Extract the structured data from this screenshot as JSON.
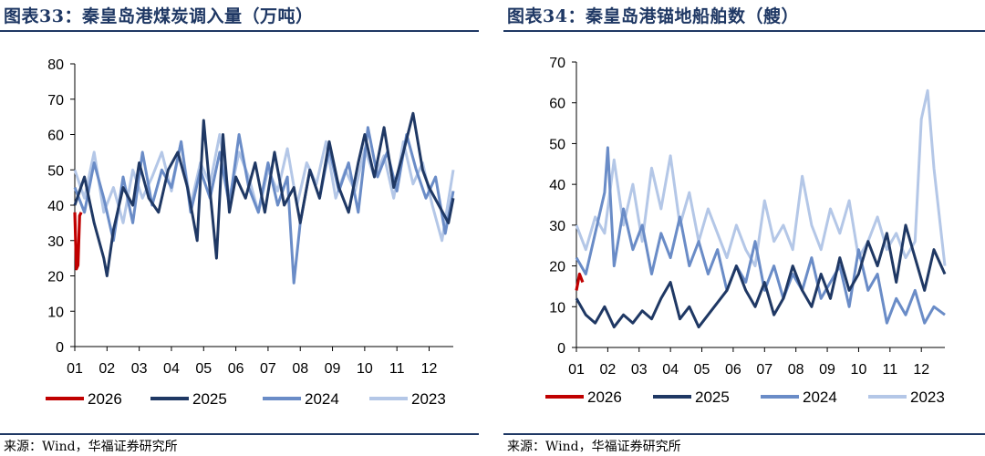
{
  "panels": [
    {
      "title": "图表33：秦皇岛港煤炭调入量（万吨）",
      "source": "来源：Wind，华福证券研究所"
    },
    {
      "title": "图表34：秦皇岛港锚地船舶数（艘）",
      "source": "来源：Wind，华福证券研究所"
    }
  ],
  "colors": {
    "2026": "#c00000",
    "2025": "#1f3864",
    "2024": "#6a8cc7",
    "2023": "#b4c7e7",
    "title": "#1f3864"
  },
  "chart_data": [
    {
      "type": "line",
      "title": "秦皇岛港煤炭调入量（万吨）",
      "x_ticks": [
        "01",
        "02",
        "03",
        "04",
        "05",
        "06",
        "07",
        "08",
        "09",
        "10",
        "11",
        "12"
      ],
      "ylim": [
        0,
        80
      ],
      "y_ticks": [
        0,
        10,
        20,
        30,
        40,
        50,
        60,
        70,
        80
      ],
      "legend": [
        "2026",
        "2025",
        "2024",
        "2023"
      ],
      "series": [
        {
          "name": "2026",
          "x": [
            1.0,
            1.05,
            1.1,
            1.15,
            1.2
          ],
          "values": [
            38,
            22,
            23,
            37,
            38
          ]
        },
        {
          "name": "2025",
          "x": [
            1.0,
            1.3,
            1.6,
            1.9,
            2.0,
            2.2,
            2.5,
            2.8,
            3.0,
            3.3,
            3.6,
            3.9,
            4.2,
            4.5,
            4.8,
            5.0,
            5.2,
            5.4,
            5.6,
            5.8,
            6.0,
            6.3,
            6.6,
            6.9,
            7.2,
            7.5,
            7.8,
            8.0,
            8.3,
            8.6,
            8.9,
            9.2,
            9.5,
            9.8,
            10.0,
            10.3,
            10.6,
            10.9,
            11.2,
            11.5,
            11.8,
            12.0,
            12.3,
            12.6,
            12.75
          ],
          "values": [
            40,
            48,
            35,
            25,
            20,
            33,
            45,
            40,
            52,
            42,
            38,
            50,
            55,
            45,
            30,
            64,
            44,
            25,
            60,
            38,
            48,
            42,
            52,
            38,
            55,
            40,
            45,
            35,
            50,
            42,
            58,
            45,
            38,
            52,
            60,
            48,
            62,
            45,
            55,
            66,
            50,
            45,
            40,
            35,
            42
          ]
        },
        {
          "name": "2024",
          "x": [
            1.0,
            1.3,
            1.6,
            1.9,
            2.2,
            2.5,
            2.8,
            3.1,
            3.4,
            3.7,
            4.0,
            4.3,
            4.6,
            4.9,
            5.2,
            5.5,
            5.8,
            6.1,
            6.4,
            6.7,
            7.0,
            7.3,
            7.6,
            7.8,
            8.0,
            8.3,
            8.6,
            8.9,
            9.2,
            9.5,
            9.8,
            10.1,
            10.4,
            10.7,
            11.0,
            11.3,
            11.6,
            11.9,
            12.2,
            12.5,
            12.75
          ],
          "values": [
            45,
            38,
            52,
            42,
            30,
            48,
            35,
            55,
            40,
            50,
            45,
            58,
            38,
            50,
            42,
            55,
            40,
            60,
            45,
            38,
            52,
            40,
            48,
            18,
            35,
            50,
            42,
            56,
            44,
            52,
            38,
            62,
            48,
            55,
            44,
            60,
            50,
            42,
            48,
            32,
            44
          ]
        },
        {
          "name": "2023",
          "x": [
            1.0,
            1.3,
            1.6,
            1.9,
            2.2,
            2.5,
            2.8,
            3.1,
            3.4,
            3.7,
            4.0,
            4.3,
            4.6,
            4.9,
            5.2,
            5.5,
            5.8,
            6.1,
            6.4,
            6.7,
            7.0,
            7.3,
            7.6,
            7.9,
            8.2,
            8.5,
            8.8,
            9.1,
            9.4,
            9.7,
            10.0,
            10.3,
            10.6,
            10.9,
            11.2,
            11.5,
            11.8,
            12.1,
            12.4,
            12.75
          ],
          "values": [
            50,
            42,
            55,
            38,
            45,
            35,
            50,
            42,
            48,
            55,
            44,
            58,
            40,
            52,
            46,
            60,
            42,
            55,
            48,
            38,
            50,
            44,
            56,
            40,
            52,
            46,
            58,
            42,
            50,
            44,
            56,
            48,
            54,
            42,
            58,
            46,
            52,
            40,
            30,
            50
          ]
        }
      ]
    },
    {
      "type": "line",
      "title": "秦皇岛港锚地船舶数（艘）",
      "x_ticks": [
        "01",
        "02",
        "03",
        "04",
        "05",
        "06",
        "07",
        "08",
        "09",
        "10",
        "11",
        "12"
      ],
      "ylim": [
        0,
        70
      ],
      "y_ticks": [
        0,
        10,
        20,
        30,
        40,
        50,
        60,
        70
      ],
      "legend": [
        "2026",
        "2025",
        "2024",
        "2023"
      ],
      "series": [
        {
          "name": "2026",
          "x": [
            1.0,
            1.1,
            1.2
          ],
          "values": [
            14,
            18,
            16
          ]
        },
        {
          "name": "2025",
          "x": [
            1.0,
            1.3,
            1.6,
            1.9,
            2.2,
            2.5,
            2.8,
            3.1,
            3.4,
            3.7,
            4.0,
            4.3,
            4.6,
            4.9,
            5.2,
            5.5,
            5.8,
            6.1,
            6.4,
            6.7,
            7.0,
            7.3,
            7.6,
            7.9,
            8.2,
            8.5,
            8.8,
            9.1,
            9.4,
            9.7,
            10.0,
            10.3,
            10.6,
            10.9,
            11.2,
            11.5,
            11.8,
            12.1,
            12.4,
            12.75
          ],
          "values": [
            12,
            8,
            6,
            10,
            5,
            8,
            6,
            9,
            7,
            12,
            16,
            7,
            10,
            5,
            8,
            11,
            14,
            20,
            14,
            10,
            16,
            8,
            12,
            20,
            14,
            10,
            18,
            12,
            22,
            14,
            18,
            26,
            20,
            28,
            16,
            30,
            22,
            14,
            24,
            18
          ]
        },
        {
          "name": "2024",
          "x": [
            1.0,
            1.3,
            1.6,
            1.9,
            2.0,
            2.2,
            2.5,
            2.8,
            3.1,
            3.4,
            3.7,
            4.0,
            4.3,
            4.6,
            4.9,
            5.2,
            5.5,
            5.8,
            6.1,
            6.4,
            6.7,
            7.0,
            7.3,
            7.6,
            7.9,
            8.2,
            8.5,
            8.8,
            9.1,
            9.4,
            9.7,
            10.0,
            10.3,
            10.6,
            10.9,
            11.2,
            11.5,
            11.8,
            12.1,
            12.4,
            12.75
          ],
          "values": [
            22,
            18,
            28,
            38,
            49,
            20,
            34,
            24,
            30,
            18,
            28,
            22,
            32,
            20,
            26,
            18,
            24,
            14,
            20,
            16,
            26,
            14,
            20,
            12,
            18,
            14,
            22,
            12,
            16,
            20,
            10,
            24,
            14,
            18,
            6,
            12,
            8,
            14,
            6,
            10,
            8
          ]
        },
        {
          "name": "2023",
          "x": [
            1.0,
            1.3,
            1.6,
            1.9,
            2.2,
            2.5,
            2.8,
            3.1,
            3.4,
            3.7,
            4.0,
            4.3,
            4.6,
            4.9,
            5.2,
            5.5,
            5.8,
            6.1,
            6.4,
            6.7,
            7.0,
            7.3,
            7.6,
            7.9,
            8.2,
            8.5,
            8.8,
            9.1,
            9.4,
            9.7,
            10.0,
            10.3,
            10.6,
            10.9,
            11.2,
            11.5,
            11.8,
            12.0,
            12.2,
            12.4,
            12.75
          ],
          "values": [
            30,
            24,
            32,
            28,
            46,
            30,
            40,
            26,
            44,
            34,
            47,
            30,
            38,
            26,
            34,
            28,
            22,
            30,
            24,
            20,
            36,
            26,
            30,
            24,
            42,
            30,
            24,
            34,
            28,
            36,
            22,
            26,
            32,
            24,
            28,
            22,
            26,
            56,
            63,
            44,
            20
          ]
        }
      ]
    }
  ]
}
